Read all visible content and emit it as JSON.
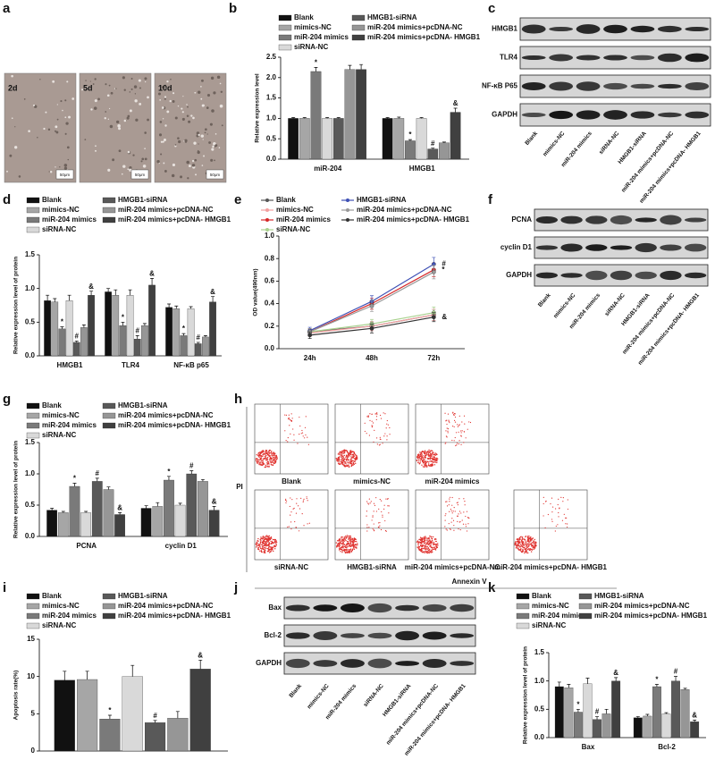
{
  "panel_labels": [
    "a",
    "b",
    "c",
    "d",
    "e",
    "f",
    "g",
    "h",
    "i",
    "j",
    "k"
  ],
  "micrographs": {
    "labels": [
      "2d",
      "5d",
      "10d"
    ],
    "scale_bar": "50μm"
  },
  "blots": [
    {
      "rows": [
        "HMGB1",
        "TLR4",
        "NF-κB P65",
        "GAPDH"
      ],
      "lanes": [
        "Blank",
        "mimics-NC",
        "miR-204 mimics",
        "siRNA-NC",
        "HMGB1-siRNA",
        "miR-204 mimics+pcDNA-NC",
        "miR-204 mimics+pcDNA- HMGB1"
      ]
    },
    {
      "rows": [
        "PCNA",
        "cyclin D1",
        "GAPDH"
      ],
      "lanes": [
        "Blank",
        "mimics-NC",
        "miR-204 mimics",
        "siRNA-NC",
        "HMGB1-siRNA",
        "miR-204 mimics+pcDNA-NC",
        "miR-204 mimics+pcDNA- HMGB1"
      ]
    },
    {
      "rows": [
        "Bax",
        "Bcl-2",
        "GAPDH"
      ],
      "lanes": [
        "Blank",
        "mimics-NC",
        "miR-204 mimics",
        "siRNA-NC",
        "HMGB1-siRNA",
        "miR-204 mimics+pcDNA-NC",
        "miR-204 mimics+pcDNA- HMGB1"
      ]
    }
  ],
  "flow": {
    "y_label": "PI",
    "x_label": "Annexin V",
    "groups": [
      "Blank",
      "mimics-NC",
      "miR-204 mimics",
      "siRNA-NC",
      "HMGB1-siRNA",
      "miR-204 mimics+pcDNA-NC",
      "miR-204 mimics+pcDNA- HMGB1"
    ]
  },
  "chart_data": [
    {
      "type": "bar",
      "y_label": "Relative expression level",
      "categories": [
        "miR-204",
        "HMGB1"
      ],
      "ylim": [
        0,
        2.5
      ],
      "yticks": [
        {
          "value": 0,
          "label": "0.0"
        },
        0.5,
        {
          "value": 1,
          "label": "1.0"
        },
        1.5,
        {
          "value": 2,
          "label": "2.0"
        },
        2.5
      ],
      "series": [
        {
          "name": "Blank",
          "color": "#111111",
          "values": [
            1,
            1
          ],
          "errors": [
            0.02,
            0.02
          ]
        },
        {
          "name": "mimics-NC",
          "color": "#a6a6a6",
          "values": [
            1,
            1
          ],
          "errors": [
            0.02,
            0.03
          ]
        },
        {
          "name": "miR-204 mimics",
          "color": "#7a7a7a",
          "values": [
            2.15,
            0.45
          ],
          "errors": [
            0.1,
            0.03
          ],
          "markers": [
            "*",
            "*"
          ]
        },
        {
          "name": "siRNA-NC",
          "color": "#d9d9d9",
          "values": [
            1,
            1
          ],
          "errors": [
            0.02,
            0.02
          ]
        },
        {
          "name": "HMGB1-siRNA",
          "color": "#595959",
          "values": [
            1,
            0.25
          ],
          "errors": [
            0.02,
            0.02
          ],
          "markers": [
            null,
            "#"
          ]
        },
        {
          "name": "miR-204 mimics+pcDNA-NC",
          "color": "#969696",
          "values": [
            2.2,
            0.4
          ],
          "errors": [
            0.1,
            0.02
          ]
        },
        {
          "name": "miR-204 mimics+pcDNA- HMGB1",
          "color": "#404040",
          "values": [
            2.2,
            1.15
          ],
          "errors": [
            0.12,
            0.1
          ],
          "markers": [
            null,
            "&"
          ]
        }
      ]
    },
    {
      "type": "bar",
      "y_label": "Relative expression level of protein",
      "categories": [
        "HMGB1",
        "TLR4",
        "NF-κB p65"
      ],
      "ylim": [
        0,
        1.5
      ],
      "yticks": [
        {
          "value": 0,
          "label": "0.0"
        },
        0.5,
        {
          "value": 1,
          "label": "1.0"
        },
        1.5
      ],
      "series": [
        {
          "name": "Blank",
          "color": "#111111",
          "values": [
            0.82,
            0.95,
            0.72
          ],
          "errors": [
            0.08,
            0.05,
            0.05
          ]
        },
        {
          "name": "mimics-NC",
          "color": "#a6a6a6",
          "values": [
            0.8,
            0.9,
            0.7
          ],
          "errors": [
            0.05,
            0.08,
            0.04
          ]
        },
        {
          "name": "miR-204 mimics",
          "color": "#7a7a7a",
          "values": [
            0.4,
            0.45,
            0.3
          ],
          "errors": [
            0.03,
            0.05,
            0.03
          ],
          "markers": [
            "*",
            "*",
            "*"
          ]
        },
        {
          "name": "siRNA-NC",
          "color": "#d9d9d9",
          "values": [
            0.82,
            0.9,
            0.7
          ],
          "errors": [
            0.08,
            0.08,
            0.03
          ]
        },
        {
          "name": "HMGB1-siRNA",
          "color": "#595959",
          "values": [
            0.2,
            0.25,
            0.18
          ],
          "errors": [
            0.02,
            0.05,
            0.02
          ],
          "markers": [
            "#",
            "#",
            "#"
          ]
        },
        {
          "name": "miR-204 mimics+pcDNA-NC",
          "color": "#969696",
          "values": [
            0.42,
            0.45,
            0.28
          ],
          "errors": [
            0.04,
            0.03,
            0.02
          ]
        },
        {
          "name": "miR-204 mimics+pcDNA- HMGB1",
          "color": "#404040",
          "values": [
            0.9,
            1.05,
            0.8
          ],
          "errors": [
            0.06,
            0.1,
            0.08
          ],
          "markers": [
            "&",
            "&",
            "&"
          ]
        }
      ]
    },
    {
      "type": "line",
      "y_label": "OD value(490nm)",
      "categories": [
        "24h",
        "48h",
        "72h"
      ],
      "ylim": [
        0,
        1
      ],
      "yticks": [
        {
          "value": 0,
          "label": "0.0"
        },
        0.2,
        0.4,
        0.6,
        0.8,
        {
          "value": 1,
          "label": "1.0"
        }
      ],
      "series": [
        {
          "name": "Blank",
          "color": "#555555",
          "values": [
            0.15,
            0.2,
            0.3
          ],
          "errors": [
            0.03,
            0.04,
            0.05
          ]
        },
        {
          "name": "mimics-NC",
          "color": "#f2a0a0",
          "values": [
            0.14,
            0.2,
            0.3
          ],
          "errors": [
            0.03,
            0.04,
            0.05
          ]
        },
        {
          "name": "miR-204 mimics",
          "color": "#d62728",
          "values": [
            0.15,
            0.4,
            0.7
          ],
          "errors": [
            0.03,
            0.05,
            0.06
          ],
          "markers": [
            null,
            null,
            "*"
          ]
        },
        {
          "name": "siRNA-NC",
          "color": "#a9d18e",
          "values": [
            0.15,
            0.22,
            0.32
          ],
          "errors": [
            0.03,
            0.04,
            0.05
          ]
        },
        {
          "name": "HMGB1-siRNA",
          "color": "#3f51b5",
          "values": [
            0.16,
            0.42,
            0.75
          ],
          "errors": [
            0.03,
            0.05,
            0.06
          ],
          "markers": [
            null,
            null,
            "#"
          ]
        },
        {
          "name": "miR-204 mimics+pcDNA-NC",
          "color": "#999999",
          "values": [
            0.15,
            0.38,
            0.68
          ],
          "errors": [
            0.03,
            0.05,
            0.06
          ]
        },
        {
          "name": "miR-204 mimics+pcDNA- HMGB1",
          "color": "#333333",
          "values": [
            0.12,
            0.18,
            0.28
          ],
          "errors": [
            0.03,
            0.04,
            0.04
          ],
          "markers": [
            null,
            null,
            "&"
          ]
        }
      ]
    },
    {
      "type": "bar",
      "y_label": "Relative expression level of protein",
      "categories": [
        "PCNA",
        "cyclin D1"
      ],
      "ylim": [
        0,
        1.5
      ],
      "yticks": [
        {
          "value": 0,
          "label": "0.0"
        },
        0.5,
        {
          "value": 1,
          "label": "1.0"
        },
        1.5
      ],
      "series": [
        {
          "name": "Blank",
          "color": "#111111",
          "values": [
            0.42,
            0.45
          ],
          "errors": [
            0.03,
            0.04
          ]
        },
        {
          "name": "mimics-NC",
          "color": "#a6a6a6",
          "values": [
            0.38,
            0.48
          ],
          "errors": [
            0.02,
            0.06
          ]
        },
        {
          "name": "miR-204 mimics",
          "color": "#7a7a7a",
          "values": [
            0.8,
            0.9
          ],
          "errors": [
            0.05,
            0.06
          ],
          "markers": [
            "*",
            "*"
          ]
        },
        {
          "name": "siRNA-NC",
          "color": "#d9d9d9",
          "values": [
            0.38,
            0.5
          ],
          "errors": [
            0.02,
            0.03
          ]
        },
        {
          "name": "HMGB1-siRNA",
          "color": "#595959",
          "values": [
            0.88,
            1
          ],
          "errors": [
            0.05,
            0.05
          ],
          "markers": [
            "#",
            "#"
          ]
        },
        {
          "name": "miR-204 mimics+pcDNA-NC",
          "color": "#969696",
          "values": [
            0.75,
            0.88
          ],
          "errors": [
            0.04,
            0.03
          ]
        },
        {
          "name": "miR-204 mimics+pcDNA- HMGB1",
          "color": "#404040",
          "values": [
            0.35,
            0.42
          ],
          "errors": [
            0.03,
            0.06
          ],
          "markers": [
            "&",
            "&"
          ]
        }
      ]
    },
    {
      "type": "bar",
      "y_label": "Apoptosis rate(%)",
      "ylim": [
        0,
        15
      ],
      "yticks": [
        0,
        5,
        10,
        15
      ],
      "series": [
        {
          "name": "Blank",
          "color": "#111111",
          "values": [
            9.5
          ],
          "errors": [
            1.2
          ]
        },
        {
          "name": "mimics-NC",
          "color": "#a6a6a6",
          "values": [
            9.6
          ],
          "errors": [
            1.1
          ]
        },
        {
          "name": "miR-204 mimics",
          "color": "#7a7a7a",
          "values": [
            4.3
          ],
          "errors": [
            0.5
          ],
          "markers": [
            "*"
          ]
        },
        {
          "name": "siRNA-NC",
          "color": "#d9d9d9",
          "values": [
            10
          ],
          "errors": [
            1.5
          ]
        },
        {
          "name": "HMGB1-siRNA",
          "color": "#595959",
          "values": [
            3.8
          ],
          "errors": [
            0.3
          ],
          "markers": [
            "#"
          ]
        },
        {
          "name": "miR-204 mimics+pcDNA-NC",
          "color": "#969696",
          "values": [
            4.4
          ],
          "errors": [
            0.9
          ]
        },
        {
          "name": "miR-204 mimics+pcDNA- HMGB1",
          "color": "#404040",
          "values": [
            11
          ],
          "errors": [
            1.2
          ],
          "markers": [
            "&"
          ]
        }
      ]
    },
    {
      "type": "bar",
      "y_label": "Relative expression level of protein",
      "categories": [
        "Bax",
        "Bcl-2"
      ],
      "ylim": [
        0,
        1.5
      ],
      "yticks": [
        {
          "value": 0,
          "label": "0.0"
        },
        0.5,
        {
          "value": 1,
          "label": "1.0"
        },
        1.5
      ],
      "series": [
        {
          "name": "Blank",
          "color": "#111111",
          "values": [
            0.9,
            0.35
          ],
          "errors": [
            0.08,
            0.02
          ]
        },
        {
          "name": "mimics-NC",
          "color": "#a6a6a6",
          "values": [
            0.88,
            0.38
          ],
          "errors": [
            0.06,
            0.03
          ]
        },
        {
          "name": "miR-204 mimics",
          "color": "#7a7a7a",
          "values": [
            0.45,
            0.9
          ],
          "errors": [
            0.05,
            0.04
          ],
          "markers": [
            "*",
            "*"
          ]
        },
        {
          "name": "siRNA-NC",
          "color": "#d9d9d9",
          "values": [
            0.95,
            0.42
          ],
          "errors": [
            0.1,
            0.02
          ]
        },
        {
          "name": "HMGB1-siRNA",
          "color": "#595959",
          "values": [
            0.32,
            1
          ],
          "errors": [
            0.05,
            0.08
          ],
          "markers": [
            "#",
            "#"
          ]
        },
        {
          "name": "miR-204 mimics+pcDNA-NC",
          "color": "#969696",
          "values": [
            0.42,
            0.85
          ],
          "errors": [
            0.08,
            0.02
          ]
        },
        {
          "name": "miR-204 mimics+pcDNA- HMGB1",
          "color": "#404040",
          "values": [
            1,
            0.28
          ],
          "errors": [
            0.06,
            0.03
          ],
          "markers": [
            "&",
            "&"
          ]
        }
      ]
    }
  ]
}
